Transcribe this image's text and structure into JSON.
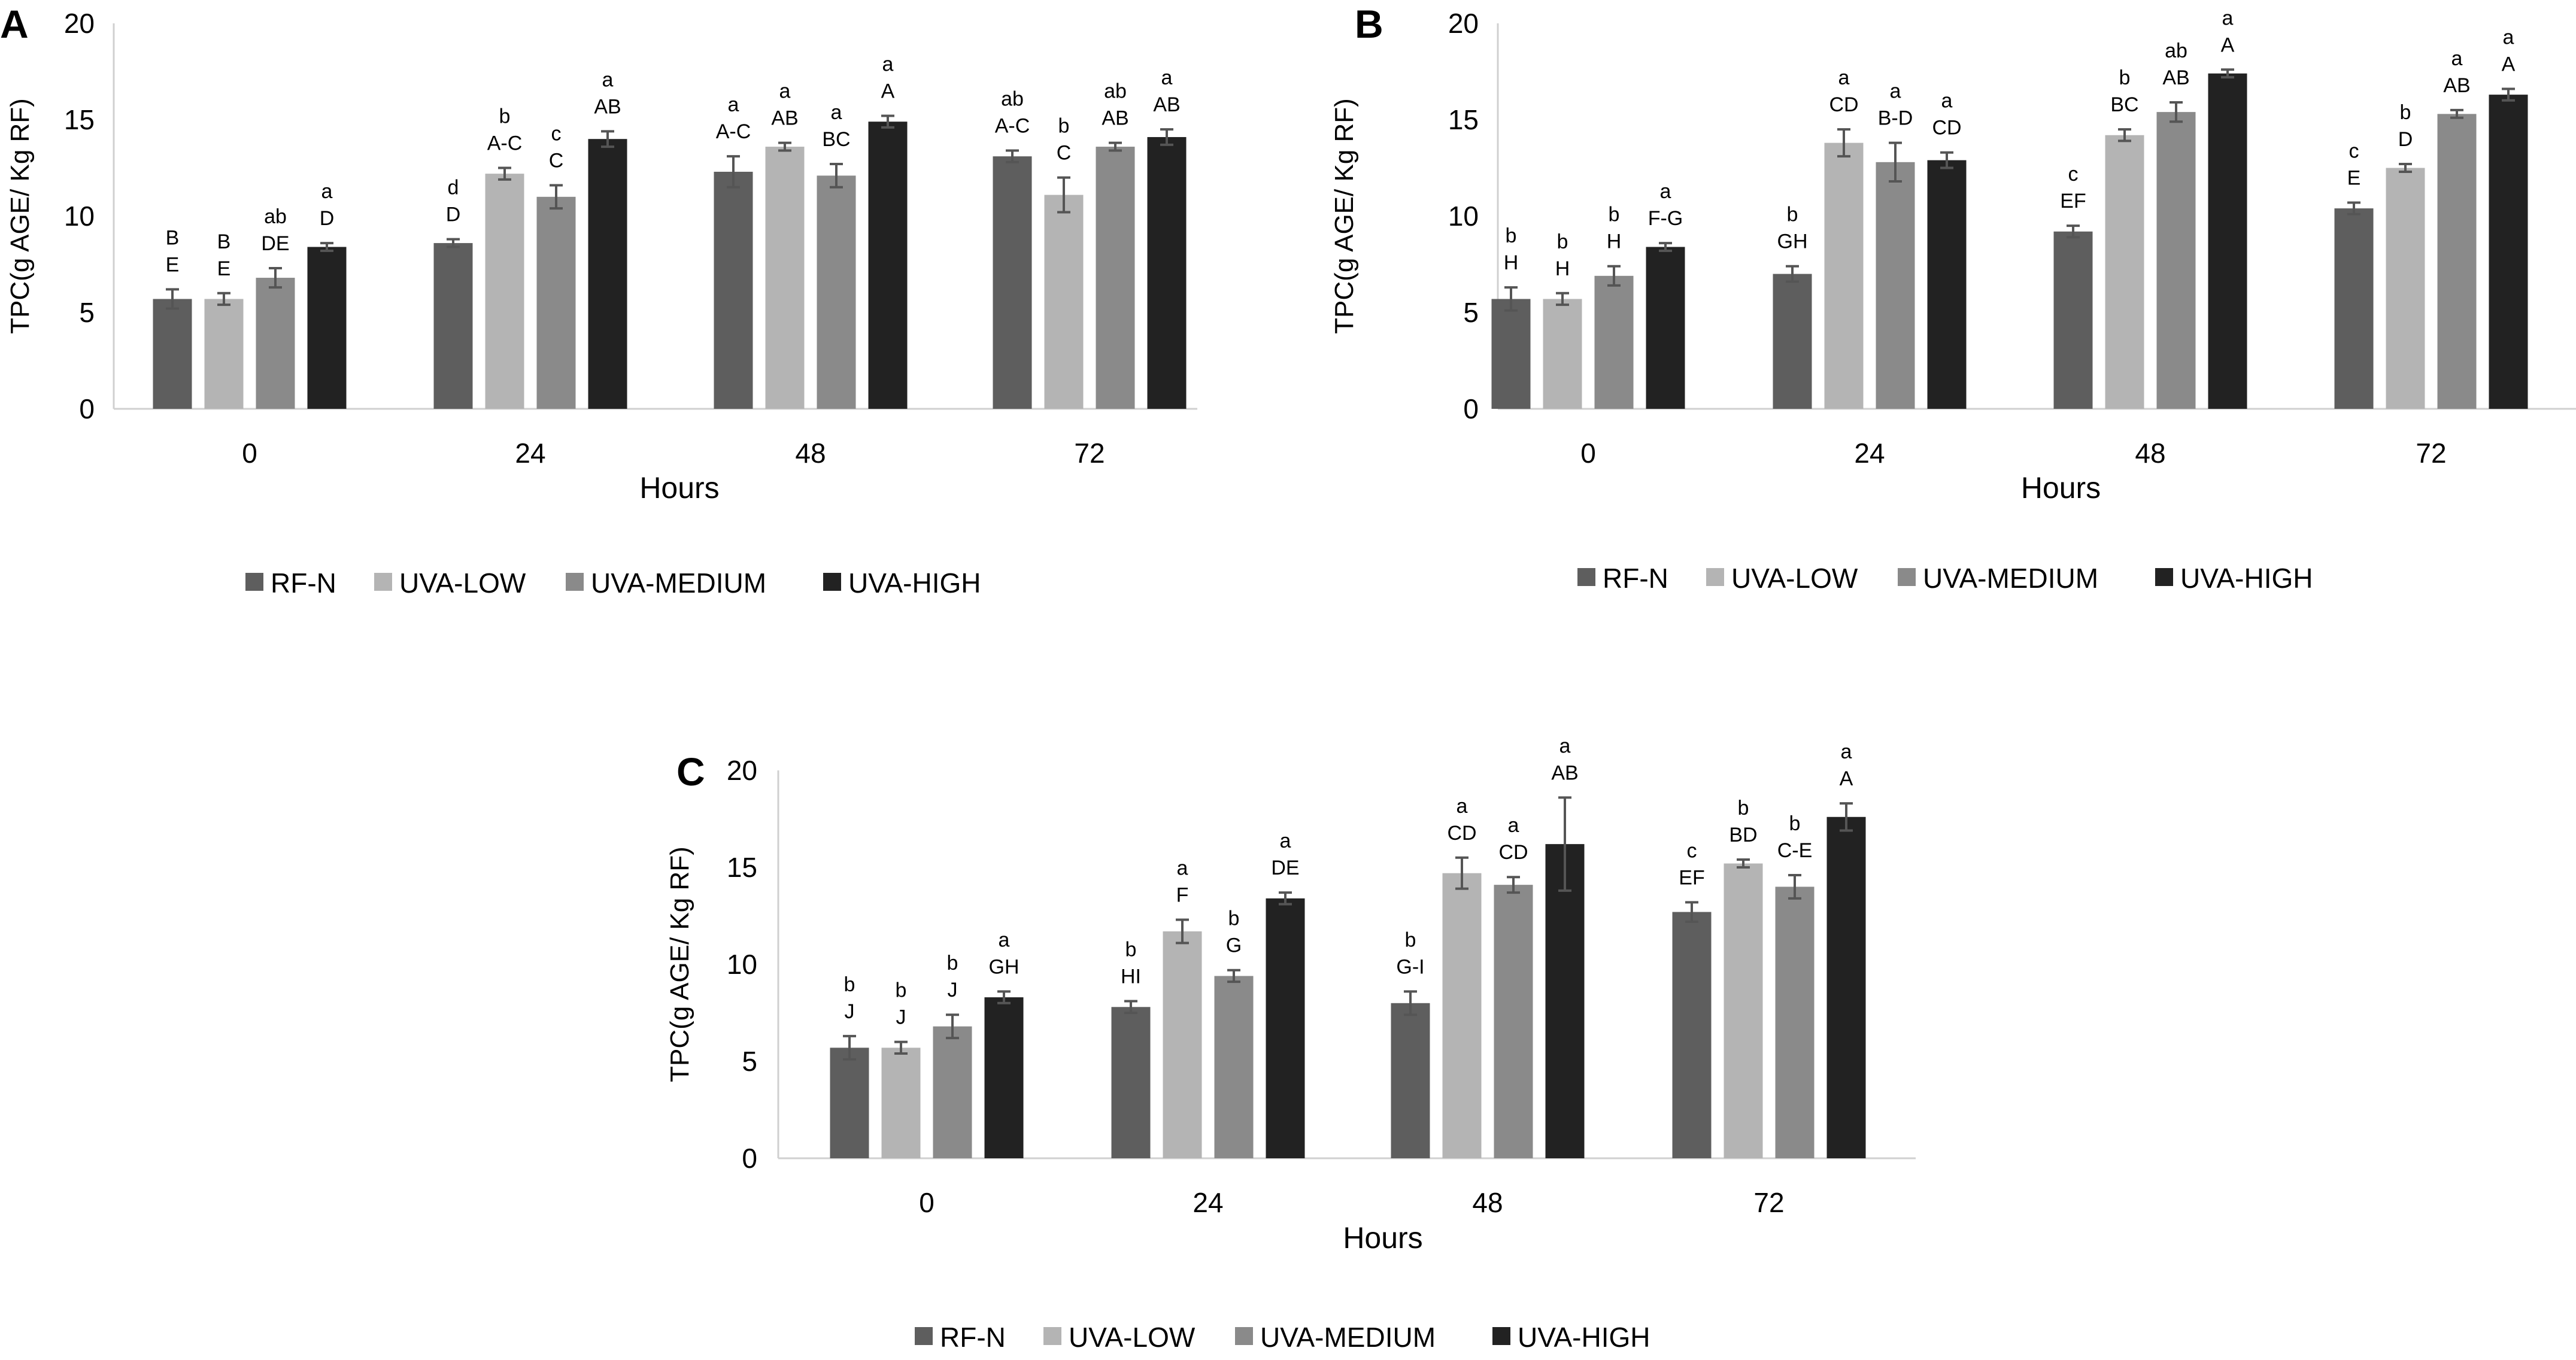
{
  "figure": {
    "legend_labels": [
      "RF-N",
      "UVA-LOW",
      "UVA-MEDIUM",
      "UVA-HIGH"
    ],
    "colors": [
      "#5e5e5e",
      "#b4b4b4",
      "#8a8a8a",
      "#222222"
    ],
    "error_bar_color": "#555555"
  },
  "chart_data": [
    {
      "panel": "A",
      "type": "bar",
      "title": "",
      "xlabel": "Hours",
      "ylabel": "TPC(g AGE/ Kg RF)",
      "ylim": [
        0,
        20
      ],
      "yticks": [
        0,
        5,
        10,
        15,
        20
      ],
      "categories": [
        "0",
        "24",
        "48",
        "72"
      ],
      "legend_position": "bottom",
      "series": [
        {
          "name": "RF-N",
          "values": [
            5.7,
            8.6,
            12.3,
            13.1
          ],
          "errors": [
            0.5,
            0.2,
            0.8,
            0.3
          ],
          "labels": [
            [
              "B",
              "E"
            ],
            [
              "d",
              "D"
            ],
            [
              "a",
              "A-C"
            ],
            [
              "ab",
              "A-C"
            ]
          ]
        },
        {
          "name": "UVA-LOW",
          "values": [
            5.7,
            12.2,
            13.6,
            11.1
          ],
          "errors": [
            0.3,
            0.3,
            0.2,
            0.9
          ],
          "labels": [
            [
              "B",
              "E"
            ],
            [
              "b",
              "A-C"
            ],
            [
              "a",
              "AB"
            ],
            [
              "b",
              "C"
            ]
          ]
        },
        {
          "name": "UVA-MEDIUM",
          "values": [
            6.8,
            11.0,
            12.1,
            13.6
          ],
          "errors": [
            0.5,
            0.6,
            0.6,
            0.2
          ],
          "labels": [
            [
              "ab",
              "DE"
            ],
            [
              "c",
              "C"
            ],
            [
              "a",
              "BC"
            ],
            [
              "ab",
              "AB"
            ]
          ]
        },
        {
          "name": "UVA-HIGH",
          "values": [
            8.4,
            14.0,
            14.9,
            14.1
          ],
          "errors": [
            0.2,
            0.4,
            0.3,
            0.4
          ],
          "labels": [
            [
              "a",
              "D"
            ],
            [
              "a",
              "AB"
            ],
            [
              "a",
              "A"
            ],
            [
              "a",
              "AB"
            ]
          ]
        }
      ]
    },
    {
      "panel": "B",
      "type": "bar",
      "title": "",
      "xlabel": "Hours",
      "ylabel": "TPC(g AGE/ Kg RF)",
      "ylim": [
        0,
        20
      ],
      "yticks": [
        0,
        5,
        10,
        15,
        20
      ],
      "categories": [
        "0",
        "24",
        "48",
        "72"
      ],
      "legend_position": "bottom",
      "series": [
        {
          "name": "RF-N",
          "values": [
            5.7,
            7.0,
            9.2,
            10.4
          ],
          "errors": [
            0.6,
            0.4,
            0.3,
            0.3
          ],
          "labels": [
            [
              "b",
              "H"
            ],
            [
              "b",
              "GH"
            ],
            [
              "c",
              "EF"
            ],
            [
              "c",
              "E"
            ]
          ]
        },
        {
          "name": "UVA-LOW",
          "values": [
            5.7,
            13.8,
            14.2,
            12.5
          ],
          "errors": [
            0.3,
            0.7,
            0.3,
            0.2
          ],
          "labels": [
            [
              "b",
              "H"
            ],
            [
              "a",
              "CD"
            ],
            [
              "b",
              "BC"
            ],
            [
              "b",
              "D"
            ]
          ]
        },
        {
          "name": "UVA-MEDIUM",
          "values": [
            6.9,
            12.8,
            15.4,
            15.3
          ],
          "errors": [
            0.5,
            1.0,
            0.5,
            0.2
          ],
          "labels": [
            [
              "b",
              "H"
            ],
            [
              "a",
              "B-D"
            ],
            [
              "ab",
              "AB"
            ],
            [
              "a",
              "AB"
            ]
          ]
        },
        {
          "name": "UVA-HIGH",
          "values": [
            8.4,
            12.9,
            17.4,
            16.3
          ],
          "errors": [
            0.2,
            0.4,
            0.2,
            0.3
          ],
          "labels": [
            [
              "a",
              "F-G"
            ],
            [
              "a",
              "CD"
            ],
            [
              "a",
              "A"
            ],
            [
              "a",
              "A"
            ]
          ]
        }
      ]
    },
    {
      "panel": "C",
      "type": "bar",
      "title": "",
      "xlabel": "Hours",
      "ylabel": "TPC(g AGE/ Kg RF)",
      "ylim": [
        0,
        20
      ],
      "yticks": [
        0,
        5,
        10,
        15,
        20
      ],
      "categories": [
        "0",
        "24",
        "48",
        "72"
      ],
      "legend_position": "bottom",
      "series": [
        {
          "name": "RF-N",
          "values": [
            5.7,
            7.8,
            8.0,
            12.7
          ],
          "errors": [
            0.6,
            0.3,
            0.6,
            0.5
          ],
          "labels": [
            [
              "b",
              "J"
            ],
            [
              "b",
              "HI"
            ],
            [
              "b",
              "G-I"
            ],
            [
              "c",
              "EF"
            ]
          ]
        },
        {
          "name": "UVA-LOW",
          "values": [
            5.7,
            11.7,
            14.7,
            15.2
          ],
          "errors": [
            0.3,
            0.6,
            0.8,
            0.2
          ],
          "labels": [
            [
              "b",
              "J"
            ],
            [
              "a",
              "F"
            ],
            [
              "a",
              "CD"
            ],
            [
              "b",
              "BD"
            ]
          ]
        },
        {
          "name": "UVA-MEDIUM",
          "values": [
            6.8,
            9.4,
            14.1,
            14.0
          ],
          "errors": [
            0.6,
            0.3,
            0.4,
            0.6
          ],
          "labels": [
            [
              "b",
              "J"
            ],
            [
              "b",
              "G"
            ],
            [
              "a",
              "CD"
            ],
            [
              "b",
              "C-E"
            ]
          ]
        },
        {
          "name": "UVA-HIGH",
          "values": [
            8.3,
            13.4,
            16.2,
            17.6
          ],
          "errors": [
            0.3,
            0.3,
            2.4,
            0.7
          ],
          "labels": [
            [
              "a",
              "GH"
            ],
            [
              "a",
              "DE"
            ],
            [
              "a",
              "AB"
            ],
            [
              "a",
              "A"
            ]
          ]
        }
      ]
    }
  ]
}
